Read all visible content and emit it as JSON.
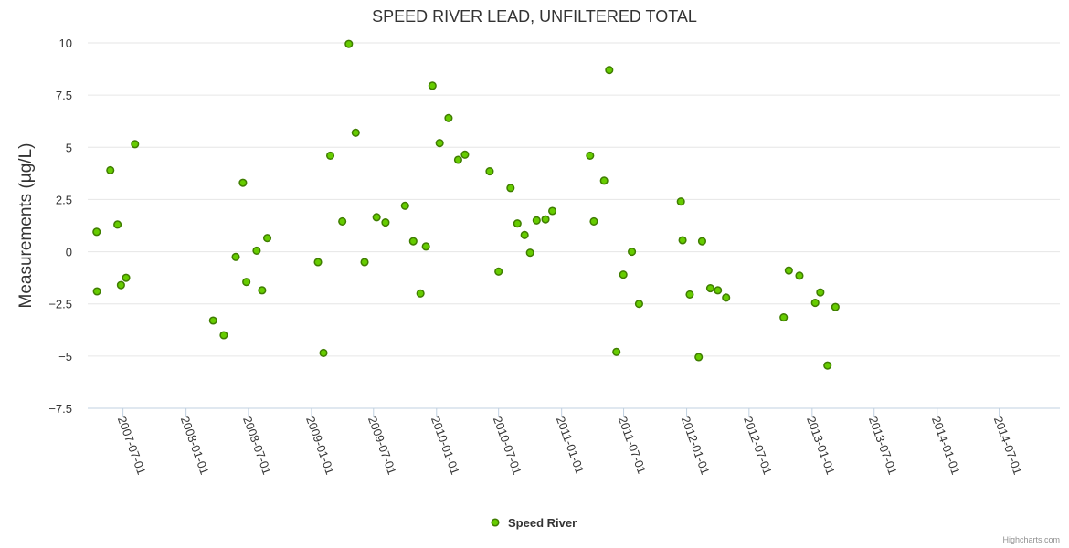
{
  "chart_data": {
    "type": "scatter",
    "title": "SPEED RIVER LEAD, UNFILTERED TOTAL",
    "xlabel": "",
    "ylabel": "Measurements (µg/L)",
    "ylim": [
      -7.5,
      10
    ],
    "yticks": [
      -7.5,
      -5,
      -2.5,
      0,
      2.5,
      5,
      7.5,
      10
    ],
    "ytick_labels": [
      "−7.5",
      "−5",
      "−2.5",
      "0",
      "2.5",
      "5",
      "7.5",
      "10"
    ],
    "xlim": [
      "2007-03-20",
      "2014-12-25"
    ],
    "xticks": [
      "2007-07-01",
      "2008-01-01",
      "2008-07-01",
      "2009-01-01",
      "2009-07-01",
      "2010-01-01",
      "2010-07-01",
      "2011-01-01",
      "2011-07-01",
      "2012-01-01",
      "2012-07-01",
      "2013-01-01",
      "2013-07-01",
      "2014-01-01",
      "2014-07-01"
    ],
    "legend": {
      "position": "bottom-center",
      "entries": [
        "Speed River"
      ]
    },
    "grid": true,
    "series": [
      {
        "name": "Speed River",
        "color": "#66cc00",
        "points": [
          {
            "x": "2007-04-15",
            "y": 0.95
          },
          {
            "x": "2007-04-16",
            "y": -1.9
          },
          {
            "x": "2007-05-25",
            "y": 3.9
          },
          {
            "x": "2007-06-15",
            "y": 1.3
          },
          {
            "x": "2007-06-25",
            "y": -1.6
          },
          {
            "x": "2007-07-10",
            "y": -1.25
          },
          {
            "x": "2007-08-05",
            "y": 5.15
          },
          {
            "x": "2008-03-20",
            "y": -3.3
          },
          {
            "x": "2008-04-20",
            "y": -4.0
          },
          {
            "x": "2008-05-25",
            "y": -0.25
          },
          {
            "x": "2008-06-15",
            "y": 3.3
          },
          {
            "x": "2008-06-25",
            "y": -1.45
          },
          {
            "x": "2008-07-25",
            "y": 0.05
          },
          {
            "x": "2008-08-10",
            "y": -1.85
          },
          {
            "x": "2008-08-25",
            "y": 0.65
          },
          {
            "x": "2009-01-20",
            "y": -0.5
          },
          {
            "x": "2009-02-05",
            "y": -4.85
          },
          {
            "x": "2009-02-25",
            "y": 4.6
          },
          {
            "x": "2009-04-01",
            "y": 1.45
          },
          {
            "x": "2009-04-20",
            "y": 9.95
          },
          {
            "x": "2009-05-10",
            "y": 5.7
          },
          {
            "x": "2009-06-05",
            "y": -0.5
          },
          {
            "x": "2009-07-10",
            "y": 1.65
          },
          {
            "x": "2009-08-05",
            "y": 1.4
          },
          {
            "x": "2009-10-01",
            "y": 2.2
          },
          {
            "x": "2009-10-25",
            "y": 0.5
          },
          {
            "x": "2009-11-15",
            "y": -2.0
          },
          {
            "x": "2009-12-01",
            "y": 0.25
          },
          {
            "x": "2009-12-20",
            "y": 7.95
          },
          {
            "x": "2010-01-10",
            "y": 5.2
          },
          {
            "x": "2010-02-05",
            "y": 6.4
          },
          {
            "x": "2010-03-05",
            "y": 4.4
          },
          {
            "x": "2010-03-25",
            "y": 4.65
          },
          {
            "x": "2010-06-05",
            "y": 3.85
          },
          {
            "x": "2010-07-01",
            "y": -0.95
          },
          {
            "x": "2010-08-05",
            "y": 3.05
          },
          {
            "x": "2010-08-25",
            "y": 1.35
          },
          {
            "x": "2010-09-15",
            "y": 0.8
          },
          {
            "x": "2010-10-01",
            "y": -0.05
          },
          {
            "x": "2010-10-20",
            "y": 1.5
          },
          {
            "x": "2010-11-15",
            "y": 1.55
          },
          {
            "x": "2010-12-05",
            "y": 1.95
          },
          {
            "x": "2011-03-25",
            "y": 4.6
          },
          {
            "x": "2011-04-05",
            "y": 1.45
          },
          {
            "x": "2011-05-05",
            "y": 3.4
          },
          {
            "x": "2011-05-20",
            "y": 8.7
          },
          {
            "x": "2011-06-10",
            "y": -4.8
          },
          {
            "x": "2011-06-30",
            "y": -1.1
          },
          {
            "x": "2011-07-25",
            "y": 0.0
          },
          {
            "x": "2011-08-15",
            "y": -2.5
          },
          {
            "x": "2011-12-15",
            "y": 2.4
          },
          {
            "x": "2011-12-20",
            "y": 0.55
          },
          {
            "x": "2012-01-10",
            "y": -2.05
          },
          {
            "x": "2012-02-05",
            "y": -5.05
          },
          {
            "x": "2012-02-15",
            "y": 0.5
          },
          {
            "x": "2012-03-10",
            "y": -1.75
          },
          {
            "x": "2012-04-01",
            "y": -1.85
          },
          {
            "x": "2012-04-25",
            "y": -2.2
          },
          {
            "x": "2012-10-10",
            "y": -3.15
          },
          {
            "x": "2012-10-25",
            "y": -0.9
          },
          {
            "x": "2012-11-25",
            "y": -1.15
          },
          {
            "x": "2013-01-10",
            "y": -2.45
          },
          {
            "x": "2013-01-25",
            "y": -1.95
          },
          {
            "x": "2013-02-15",
            "y": -5.45
          },
          {
            "x": "2013-03-10",
            "y": -2.65
          }
        ]
      }
    ]
  },
  "credit": "Highcharts.com"
}
